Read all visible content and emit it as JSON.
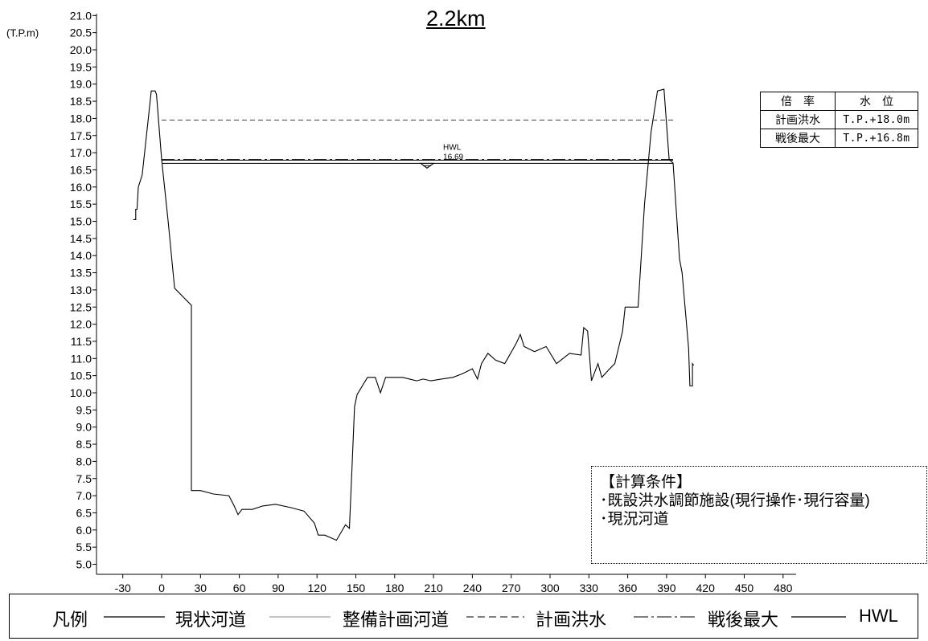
{
  "chart_data": {
    "type": "line",
    "title": "2.2km",
    "ylabel": "(T.P.m)",
    "xlabel": "",
    "xlim": [
      -40,
      490
    ],
    "ylim": [
      5.0,
      21.0
    ],
    "x_ticks": [
      -30,
      0,
      30,
      60,
      90,
      120,
      150,
      180,
      210,
      240,
      270,
      300,
      330,
      360,
      390,
      420,
      450,
      480
    ],
    "y_ticks": [
      "21.0",
      "20.5",
      "20.0",
      "19.5",
      "19.0",
      "18.5",
      "18.0",
      "17.5",
      "17.0",
      "16.5",
      "16.0",
      "15.5",
      "15.0",
      "14.5",
      "14.0",
      "13.5",
      "13.0",
      "12.5",
      "12.0",
      "11.5",
      "11.0",
      "10.5",
      "10.0",
      "9.5",
      "9.0",
      "8.5",
      "8.0",
      "7.5",
      "7.0",
      "6.5",
      "6.0",
      "5.5",
      "5.0"
    ],
    "series": [
      {
        "name": "現状河道",
        "style": "solid",
        "points": [
          [
            -22,
            15.05
          ],
          [
            -20,
            15.05
          ],
          [
            -20,
            15.35
          ],
          [
            -19,
            15.35
          ],
          [
            -18,
            16.0
          ],
          [
            -15,
            16.35
          ],
          [
            -10,
            18.1
          ],
          [
            -8,
            18.8
          ],
          [
            -5,
            18.8
          ],
          [
            -4,
            18.7
          ],
          [
            0,
            16.8
          ],
          [
            5,
            15.0
          ],
          [
            10,
            13.05
          ],
          [
            23,
            12.55
          ],
          [
            23,
            7.15
          ],
          [
            30,
            7.15
          ],
          [
            40,
            7.05
          ],
          [
            52,
            7.0
          ],
          [
            56,
            6.7
          ],
          [
            59,
            6.45
          ],
          [
            62,
            6.6
          ],
          [
            70,
            6.6
          ],
          [
            78,
            6.7
          ],
          [
            88,
            6.75
          ],
          [
            100,
            6.65
          ],
          [
            110,
            6.55
          ],
          [
            118,
            6.2
          ],
          [
            121,
            5.85
          ],
          [
            126,
            5.85
          ],
          [
            135,
            5.7
          ],
          [
            142,
            6.15
          ],
          [
            145,
            6.05
          ],
          [
            147,
            7.8
          ],
          [
            149,
            9.6
          ],
          [
            151,
            9.95
          ],
          [
            159,
            10.45
          ],
          [
            165,
            10.45
          ],
          [
            169,
            10.0
          ],
          [
            173,
            10.45
          ],
          [
            178,
            10.45
          ],
          [
            186,
            10.45
          ],
          [
            197,
            10.35
          ],
          [
            202,
            10.4
          ],
          [
            208,
            10.35
          ],
          [
            216,
            10.4
          ],
          [
            225,
            10.45
          ],
          [
            232,
            10.55
          ],
          [
            240,
            10.7
          ],
          [
            244,
            10.4
          ],
          [
            247,
            10.85
          ],
          [
            252,
            11.15
          ],
          [
            258,
            10.95
          ],
          [
            265,
            10.85
          ],
          [
            274,
            11.45
          ],
          [
            277,
            11.7
          ],
          [
            280,
            11.35
          ],
          [
            288,
            11.2
          ],
          [
            297,
            11.35
          ],
          [
            305,
            10.85
          ],
          [
            315,
            11.15
          ],
          [
            324,
            11.1
          ],
          [
            326,
            11.9
          ],
          [
            329,
            11.8
          ],
          [
            332,
            10.35
          ],
          [
            337,
            10.85
          ],
          [
            340,
            10.45
          ],
          [
            346,
            10.7
          ],
          [
            350,
            10.85
          ],
          [
            356,
            11.8
          ],
          [
            358,
            12.5
          ],
          [
            366,
            12.5
          ],
          [
            368,
            12.5
          ],
          [
            373,
            15.5
          ],
          [
            378,
            17.6
          ],
          [
            383,
            18.8
          ],
          [
            388,
            18.85
          ],
          [
            392,
            16.8
          ],
          [
            395,
            16.7
          ],
          [
            400,
            13.9
          ],
          [
            402,
            13.5
          ],
          [
            407,
            11.3
          ],
          [
            408,
            10.2
          ],
          [
            410,
            10.2
          ],
          [
            410,
            10.85
          ],
          [
            411,
            10.8
          ]
        ]
      },
      {
        "name": "計画洪水",
        "style": "dashed",
        "x_range": [
          0,
          395
        ],
        "y": 17.95
      },
      {
        "name": "戦後最大",
        "style": "dash-dot",
        "x_range": [
          0,
          395
        ],
        "y": 16.8
      },
      {
        "name": "HWL",
        "style": "solid",
        "x_range": [
          0,
          395
        ],
        "y": 16.69
      }
    ],
    "hwl_label": "HWL",
    "hwl_value": "16.69",
    "hwl_marker_x": 205
  },
  "water_table": {
    "headers": [
      "倍　率",
      "水　位"
    ],
    "rows": [
      [
        "計画洪水",
        "T.P.+18.0m"
      ],
      [
        "戦後最大",
        "T.P.+16.8m"
      ]
    ]
  },
  "conditions": {
    "title": "【計算条件】",
    "lines": [
      "･既設洪水調節施設(現行操作･現行容量)",
      "･現況河道"
    ]
  },
  "legend": {
    "label": "凡例",
    "items": [
      "現状河道",
      "整備計画河道",
      "計画洪水",
      "戦後最大",
      "HWL"
    ]
  }
}
